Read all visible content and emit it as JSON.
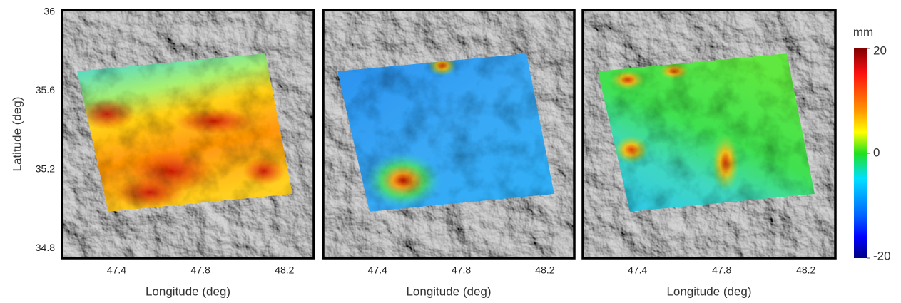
{
  "chart_data": [
    {
      "type": "map",
      "xlabel": "Longitude (deg)",
      "ylabel": "Latitude (deg)",
      "xlim": [
        47.14,
        48.34
      ],
      "ylim": [
        34.75,
        36.01
      ],
      "xticks": [
        47.4,
        47.8,
        48.2
      ],
      "yticks": [
        36,
        35.6,
        35.2,
        34.8
      ]
    },
    {
      "type": "map",
      "xlabel": "Longitude (deg)",
      "xlim": [
        47.14,
        48.34
      ],
      "xticks": [
        47.4,
        47.8,
        48.2
      ]
    },
    {
      "type": "map",
      "xlabel": "Longitude (deg)",
      "xlim": [
        47.14,
        48.34
      ],
      "xticks": [
        47.4,
        47.8,
        48.2
      ],
      "colorbar": {
        "label": "mm",
        "lim": [
          -20,
          20
        ],
        "ticks": [
          20,
          0,
          -20
        ]
      }
    }
  ]
}
